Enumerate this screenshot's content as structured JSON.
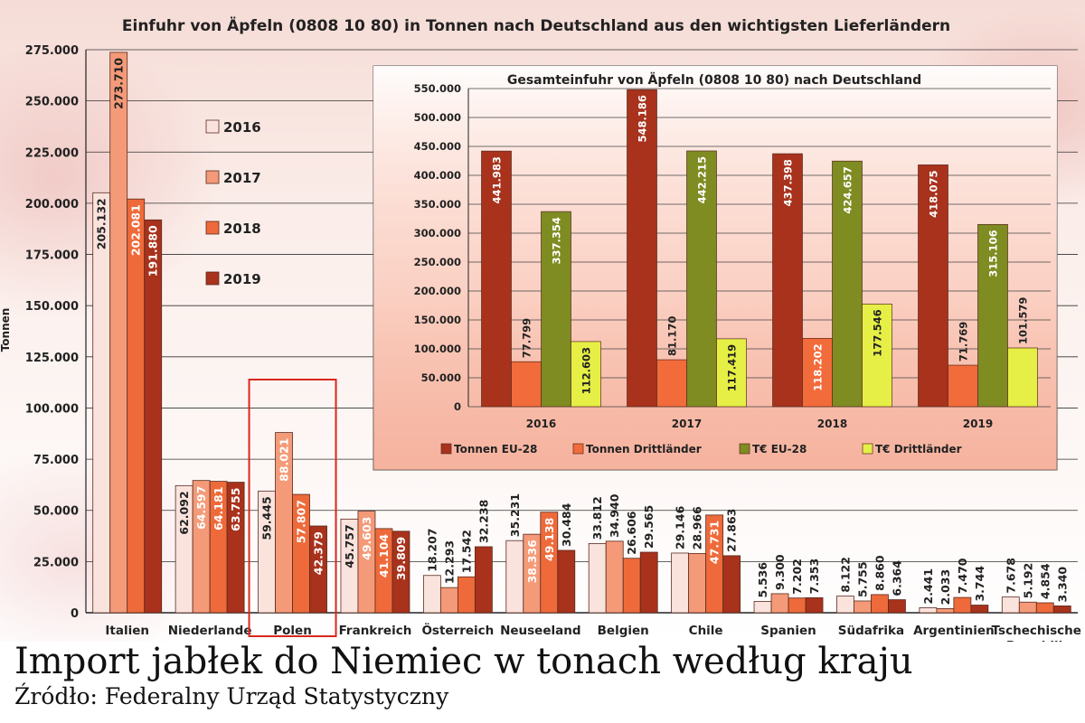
{
  "chart_data": [
    {
      "type": "bar",
      "title": "Einfuhr von Äpfeln (0808 10 80) in Tonnen nach Deutschland aus den wichtigsten Lieferländern",
      "ylabel": "Tonnen",
      "xlabel": "",
      "ylim": [
        0,
        275000
      ],
      "yticks": [
        "0",
        "25.000",
        "50.000",
        "75.000",
        "100.000",
        "125.000",
        "150.000",
        "175.000",
        "200.000",
        "225.000",
        "250.000",
        "275.000"
      ],
      "grid": true,
      "legend_position": "top-left",
      "categories": [
        "Italien",
        "Niederlande",
        "Polen",
        "Frankreich",
        "Österreich",
        "Neuseeland",
        "Belgien",
        "Chile",
        "Spanien",
        "Südafrika",
        "Argentinien",
        "Tschechische Republik"
      ],
      "category_labels": [
        [
          "Italien"
        ],
        [
          "Niederlande"
        ],
        [
          "Polen"
        ],
        [
          "Frankreich"
        ],
        [
          "Österreich"
        ],
        [
          "Neuseeland"
        ],
        [
          "Belgien"
        ],
        [
          "Chile"
        ],
        [
          "Spanien"
        ],
        [
          "Südafrika"
        ],
        [
          "Argentinien"
        ],
        [
          "Tschechische",
          "Republik"
        ]
      ],
      "highlight_category": "Polen",
      "series": [
        {
          "name": "2016",
          "color": "#fbe3dd",
          "values": [
            205132,
            62092,
            59445,
            45757,
            18207,
            35231,
            33812,
            29146,
            5536,
            8122,
            2441,
            7678
          ],
          "labels": [
            "205.132",
            "62.092",
            "59.445",
            "45.757",
            "18.207",
            "35.231",
            "33.812",
            "29.146",
            "5.536",
            "8.122",
            "2.441",
            "7.678"
          ]
        },
        {
          "name": "2017",
          "color": "#f49a78",
          "values": [
            273710,
            64597,
            88021,
            49603,
            12293,
            38336,
            34940,
            28966,
            9300,
            5755,
            2033,
            5192
          ],
          "labels": [
            "273.710",
            "64.597",
            "88.021",
            "49.603",
            "12.293",
            "38.336",
            "34.940",
            "28.966",
            "9.300",
            "5.755",
            "2.033",
            "5.192"
          ]
        },
        {
          "name": "2018",
          "color": "#ee6a3a",
          "values": [
            202081,
            64181,
            57807,
            41104,
            17542,
            49138,
            26606,
            47731,
            7202,
            8860,
            7470,
            4854
          ],
          "labels": [
            "202.081",
            "64.181",
            "57.807",
            "41.104",
            "17.542",
            "49.138",
            "26.606",
            "47.731",
            "7.202",
            "8.860",
            "7.470",
            "4.854"
          ]
        },
        {
          "name": "2019",
          "color": "#a8321c",
          "values": [
            191880,
            63755,
            42379,
            39809,
            32238,
            30484,
            29565,
            27863,
            7353,
            6364,
            3744,
            3340
          ],
          "labels": [
            "191.880",
            "63.755",
            "42.379",
            "39.809",
            "32.238",
            "30.484",
            "29.565",
            "27.863",
            "7.353",
            "6.364",
            "3.744",
            "3.340"
          ]
        }
      ]
    },
    {
      "type": "bar",
      "title": "Gesamteinfuhr von Äpfeln (0808 10 80) nach Deutschland",
      "xlabel": "",
      "ylabel": "",
      "ylim": [
        0,
        550000
      ],
      "yticks": [
        "0",
        "50.000",
        "100.000",
        "150.000",
        "200.000",
        "250.000",
        "300.000",
        "350.000",
        "400.000",
        "450.000",
        "500.000",
        "550.000"
      ],
      "grid": true,
      "legend_position": "bottom",
      "categories": [
        "2016",
        "2017",
        "2018",
        "2019"
      ],
      "series": [
        {
          "name": "Tonnen EU-28",
          "color": "#a8321c",
          "values": [
            441983,
            548186,
            437398,
            418075
          ],
          "labels": [
            "441.983",
            "548.186",
            "437.398",
            "418.075"
          ]
        },
        {
          "name": "Tonnen Drittländer",
          "color": "#f26b3a",
          "values": [
            77799,
            81170,
            118202,
            71769
          ],
          "labels": [
            "77.799",
            "81.170",
            "118.202",
            "71.769"
          ]
        },
        {
          "name": "T€ EU-28",
          "color": "#7e8c22",
          "values": [
            337354,
            442215,
            424657,
            315106
          ],
          "labels": [
            "337.354",
            "442.215",
            "424.657",
            "315.106"
          ]
        },
        {
          "name": "T€ Drittländer",
          "color": "#e6ef45",
          "values": [
            112603,
            117419,
            177546,
            101579
          ],
          "labels": [
            "112.603",
            "117.419",
            "177.546",
            "101.579"
          ]
        }
      ]
    }
  ],
  "caption": {
    "title": "Import jabłek do Niemiec w tonach według kraju",
    "source": "Źródło: Federalny Urząd Statystyczny"
  }
}
